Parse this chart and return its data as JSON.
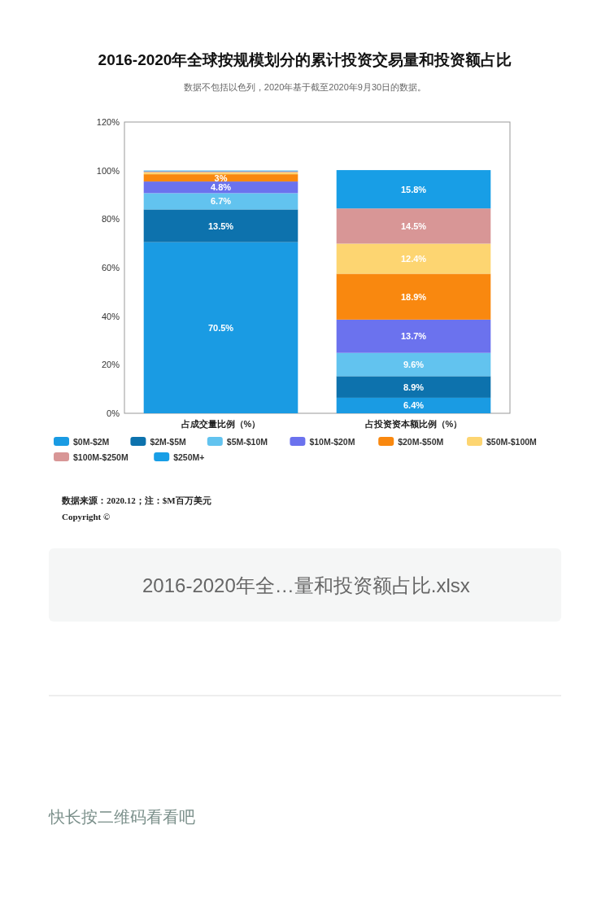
{
  "chart_data": {
    "type": "bar",
    "stacked": true,
    "title": "2016-2020年全球按规模划分的累计投资交易量和投资额占比",
    "subtitle": "数据不包括以色列，2020年基于截至2020年9月30日的数据。",
    "categories": [
      "占成交量比例（%）",
      "占投资资本额比例（%）"
    ],
    "series": [
      {
        "name": "$0M-$2M",
        "color": "#1a9be3",
        "values": [
          70.5,
          6.4
        ],
        "value_labels": [
          "70.5%",
          "6.4%"
        ]
      },
      {
        "name": "$2M-$5M",
        "color": "#0d72ad",
        "values": [
          13.5,
          8.9
        ],
        "value_labels": [
          "13.5%",
          "8.9%"
        ]
      },
      {
        "name": "$5M-$10M",
        "color": "#62c3ef",
        "values": [
          6.7,
          9.6
        ],
        "value_labels": [
          "6.7%",
          "9.6%"
        ]
      },
      {
        "name": "$10M-$20M",
        "color": "#6b72ee",
        "values": [
          4.8,
          13.7
        ],
        "value_labels": [
          "4.8%",
          "13.7%"
        ]
      },
      {
        "name": "$20M-$50M",
        "color": "#f9880f",
        "values": [
          3,
          18.9
        ],
        "value_labels": [
          "3%",
          "18.9%"
        ]
      },
      {
        "name": "$50M-$100M",
        "color": "#fdd571",
        "values": [
          0.8,
          12.4
        ],
        "value_labels": [
          null,
          "12.4%"
        ]
      },
      {
        "name": "$100M-$250M",
        "color": "#d89696",
        "values": [
          0.4,
          14.5
        ],
        "value_labels": [
          null,
          "14.5%"
        ]
      },
      {
        "name": "$250M+",
        "color": "#189ee6",
        "values": [
          0.3,
          15.8
        ],
        "value_labels": [
          null,
          "15.8%"
        ]
      }
    ],
    "ylim": [
      0,
      120
    ],
    "yticks": [
      {
        "value": 0,
        "label": "0%"
      },
      {
        "value": 20,
        "label": "20%"
      },
      {
        "value": 40,
        "label": "40%"
      },
      {
        "value": 60,
        "label": "60%"
      },
      {
        "value": 80,
        "label": "80%"
      },
      {
        "value": 100,
        "label": "100%"
      },
      {
        "value": 120,
        "label": "120%"
      }
    ],
    "legend": "bottom",
    "annotations": [
      "数据来源：2020.12；注：$M百万美元",
      "Copyright ©",
      "2016-2020年全…量和投资额占比.xlsx",
      "快长按二维码看看吧"
    ]
  }
}
